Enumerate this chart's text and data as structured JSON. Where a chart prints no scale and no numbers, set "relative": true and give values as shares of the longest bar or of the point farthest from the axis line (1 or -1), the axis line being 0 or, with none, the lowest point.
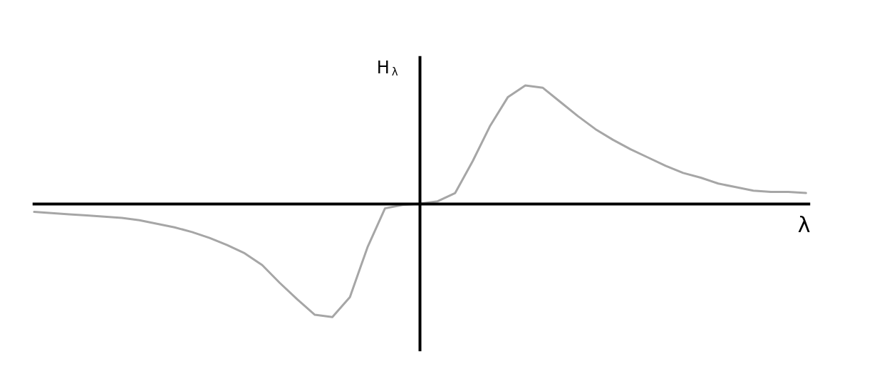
{
  "chart_data": {
    "type": "line",
    "xlabel": "λ",
    "ylabel": "H$_{λ}$",
    "relative": true,
    "categories": [
      null,
      null,
      null,
      null,
      null,
      null,
      null,
      null,
      null,
      null,
      null,
      null,
      null,
      null,
      null,
      null,
      null,
      null,
      null,
      null,
      null,
      null,
      null,
      null,
      null,
      null,
      null,
      null,
      null,
      null,
      null,
      null,
      null,
      null,
      null,
      null,
      null,
      null,
      null,
      null,
      null,
      null,
      null,
      null,
      null
    ],
    "series": [
      {
        "color": "#a6a6a6",
        "values": [
          -0.07,
          -0.08,
          -0.09,
          -0.1,
          -0.11,
          -0.12,
          -0.14,
          -0.17,
          -0.2,
          -0.24,
          -0.29,
          -0.35,
          -0.42,
          -0.52,
          -0.67,
          -0.81,
          -0.94,
          -0.96,
          -0.79,
          -0.37,
          -0.04,
          -0.01,
          0,
          0.02,
          0.09,
          0.36,
          0.66,
          0.9,
          1.0,
          0.98,
          0.86,
          0.74,
          0.63,
          0.54,
          0.46,
          0.39,
          0.32,
          0.26,
          0.22,
          0.17,
          0.14,
          0.11,
          0.1,
          0.1,
          0.09
        ]
      }
    ]
  }
}
